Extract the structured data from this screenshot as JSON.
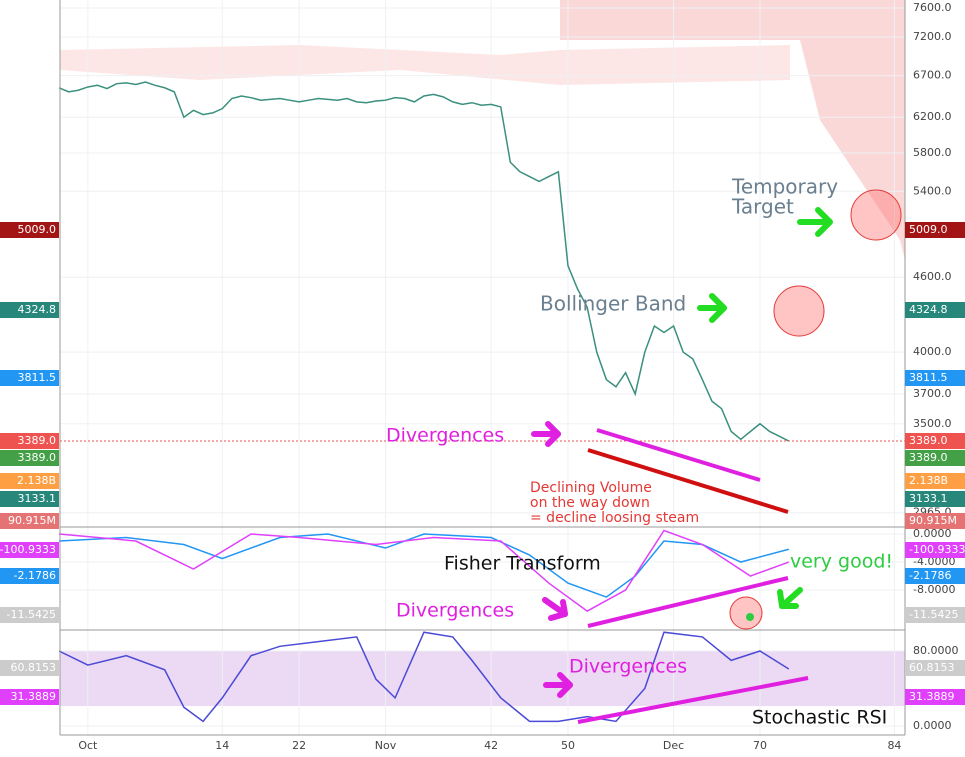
{
  "chart_data": [
    {
      "type": "line",
      "log_scale": true,
      "xlim": [
        -2.9,
        85.1
      ],
      "ylim": [
        2887,
        7715
      ],
      "xticks": [
        {
          "value": 0,
          "label": "Oct"
        },
        14,
        22,
        {
          "value": 31,
          "label": "Nov"
        },
        42,
        50,
        {
          "value": 61,
          "label": "Dec"
        },
        70,
        84
      ],
      "yticks": [
        {
          "value": 7600,
          "label": "7600.0"
        },
        {
          "value": 7200,
          "label": "7200.0"
        },
        {
          "value": 6700,
          "label": "6700.0"
        },
        {
          "value": 6200,
          "label": "6200.0"
        },
        {
          "value": 5800,
          "label": "5800.0"
        },
        {
          "value": 5400,
          "label": "5400.0"
        },
        {
          "value": 4600,
          "label": "4600.0"
        },
        {
          "value": 4000,
          "label": "4000.0"
        },
        {
          "value": 3700,
          "label": "3700.0"
        },
        {
          "value": 3500,
          "label": "3500.0"
        },
        {
          "value": 2965,
          "label": "2965.0"
        }
      ],
      "grid": true,
      "series": [
        {
          "color": "#3b8f7e",
          "x": [
            -3,
            -2,
            -1,
            0,
            1,
            2,
            3,
            4,
            5,
            6,
            7,
            8,
            9,
            10,
            11,
            12,
            13,
            14,
            15,
            16,
            17,
            18,
            19,
            20,
            21,
            22,
            23,
            24,
            25,
            26,
            27,
            28,
            29,
            30,
            31,
            32,
            33,
            34,
            35,
            36,
            37,
            38,
            39,
            40,
            41,
            42,
            43,
            44,
            45,
            46,
            47,
            48,
            49,
            50,
            51,
            52,
            53,
            54,
            55,
            56,
            57,
            58,
            59,
            60,
            61,
            62,
            63,
            64,
            65,
            66,
            67,
            68,
            69,
            70,
            71,
            72,
            73
          ],
          "values": [
            6550,
            6500,
            6520,
            6560,
            6580,
            6540,
            6600,
            6610,
            6590,
            6620,
            6580,
            6550,
            6500,
            6200,
            6280,
            6230,
            6250,
            6300,
            6420,
            6450,
            6430,
            6400,
            6410,
            6420,
            6400,
            6380,
            6400,
            6420,
            6410,
            6400,
            6420,
            6380,
            6370,
            6390,
            6400,
            6430,
            6420,
            6380,
            6450,
            6470,
            6440,
            6380,
            6350,
            6370,
            6340,
            6350,
            6320,
            5700,
            5600,
            5550,
            5500,
            5550,
            5600,
            4700,
            4500,
            4350,
            4000,
            3800,
            3750,
            3850,
            3700,
            4000,
            4200,
            4150,
            4200,
            4000,
            3950,
            3800,
            3650,
            3600,
            3450,
            3400,
            3450,
            3500,
            3450,
            3420,
            3389
          ]
        }
      ],
      "badges": [
        {
          "label": "5009.0",
          "color": "#a31515"
        },
        {
          "label": "4324.8",
          "color": "#26877a"
        },
        {
          "label": "3811.5",
          "color": "#2196f3"
        },
        {
          "label": "3389.0",
          "color": "#ef5350"
        },
        {
          "label": "3389.0",
          "color": "#43a047"
        },
        {
          "label": "2.138B",
          "color": "#ff9f43"
        },
        {
          "label": "3133.1",
          "color": "#26877a"
        },
        {
          "label": "90.915M",
          "color": "#e57373"
        }
      ]
    },
    {
      "type": "line",
      "xlim": [
        -2.9,
        85.1
      ],
      "ylim": [
        -13.7,
        1
      ],
      "yticks": [
        {
          "value": 0,
          "label": "0.0000"
        },
        {
          "value": -4,
          "label": "-4.0000"
        },
        {
          "value": -8,
          "label": "-8.0000"
        }
      ],
      "series": [
        {
          "color": "#2196f3",
          "x": [
            -3,
            4,
            10,
            14,
            20,
            25,
            31,
            35,
            42,
            46,
            50,
            54,
            57,
            60,
            64,
            68,
            73
          ],
          "values": [
            -1,
            -0.5,
            -1.5,
            -3.5,
            -0.5,
            0,
            -2,
            0,
            -0.5,
            -3,
            -7,
            -9,
            -6,
            -1,
            -1.5,
            -4,
            -2.1786
          ]
        },
        {
          "color": "#e040fb",
          "x": [
            -3,
            5,
            11,
            17,
            22,
            30,
            36,
            43,
            48,
            52,
            56,
            60,
            64,
            69,
            73
          ],
          "values": [
            0,
            -1,
            -5,
            0,
            -0.5,
            -1.5,
            -0.5,
            -1,
            -7,
            -11,
            -8,
            0.5,
            -1.5,
            -6,
            -4
          ]
        }
      ],
      "badges": [
        {
          "label": "-100.9333",
          "color": "#e040fb"
        },
        {
          "label": "-2.1786",
          "color": "#2196f3"
        },
        {
          "label": "-11.5425",
          "color": "#cccccc"
        }
      ]
    },
    {
      "type": "line",
      "xlim": [
        -2.9,
        85.1
      ],
      "ylim": [
        -9.6,
        102.4
      ],
      "yticks": [
        {
          "value": 80,
          "label": "80.0000"
        },
        {
          "value": 0,
          "label": "0.0000"
        }
      ],
      "series": [
        {
          "color": "#4a4ad6",
          "x": [
            -3,
            0,
            4,
            8,
            10,
            12,
            14,
            17,
            20,
            24,
            28,
            30,
            32,
            35,
            38,
            40,
            43,
            46,
            49,
            52,
            55,
            58,
            60,
            64,
            67,
            70,
            73
          ],
          "values": [
            80,
            65,
            75,
            60,
            20,
            5,
            30,
            75,
            85,
            90,
            95,
            50,
            30,
            100,
            95,
            70,
            30,
            5,
            5,
            10,
            5,
            40,
            100,
            95,
            70,
            80,
            60.8153
          ]
        }
      ],
      "badges": [
        {
          "label": "60.8153",
          "color": "#cccccc"
        },
        {
          "label": "31.3889",
          "color": "#e040fb"
        }
      ]
    }
  ],
  "annotations": [
    {
      "lines": [
        "Temporary",
        "Target"
      ],
      "color": "#6a7f8f"
    },
    {
      "lines": [
        "Bollinger Band"
      ],
      "color": "#6a7f8f"
    },
    {
      "lines": [
        "Divergences"
      ],
      "color": "#e020e0"
    },
    {
      "lines": [
        "Declining Volume",
        "on the way down",
        "= decline loosing steam"
      ],
      "color": "#e53935"
    },
    {
      "lines": [
        "Fisher Transform"
      ],
      "color": "#111111"
    },
    {
      "lines": [
        "Divergences"
      ],
      "color": "#e020e0"
    },
    {
      "lines": [
        "very good!"
      ],
      "color": "#2ecc40"
    },
    {
      "lines": [
        "Divergences"
      ],
      "color": "#e020e0"
    },
    {
      "lines": [
        "Stochastic RSI"
      ],
      "color": "#111111"
    }
  ]
}
